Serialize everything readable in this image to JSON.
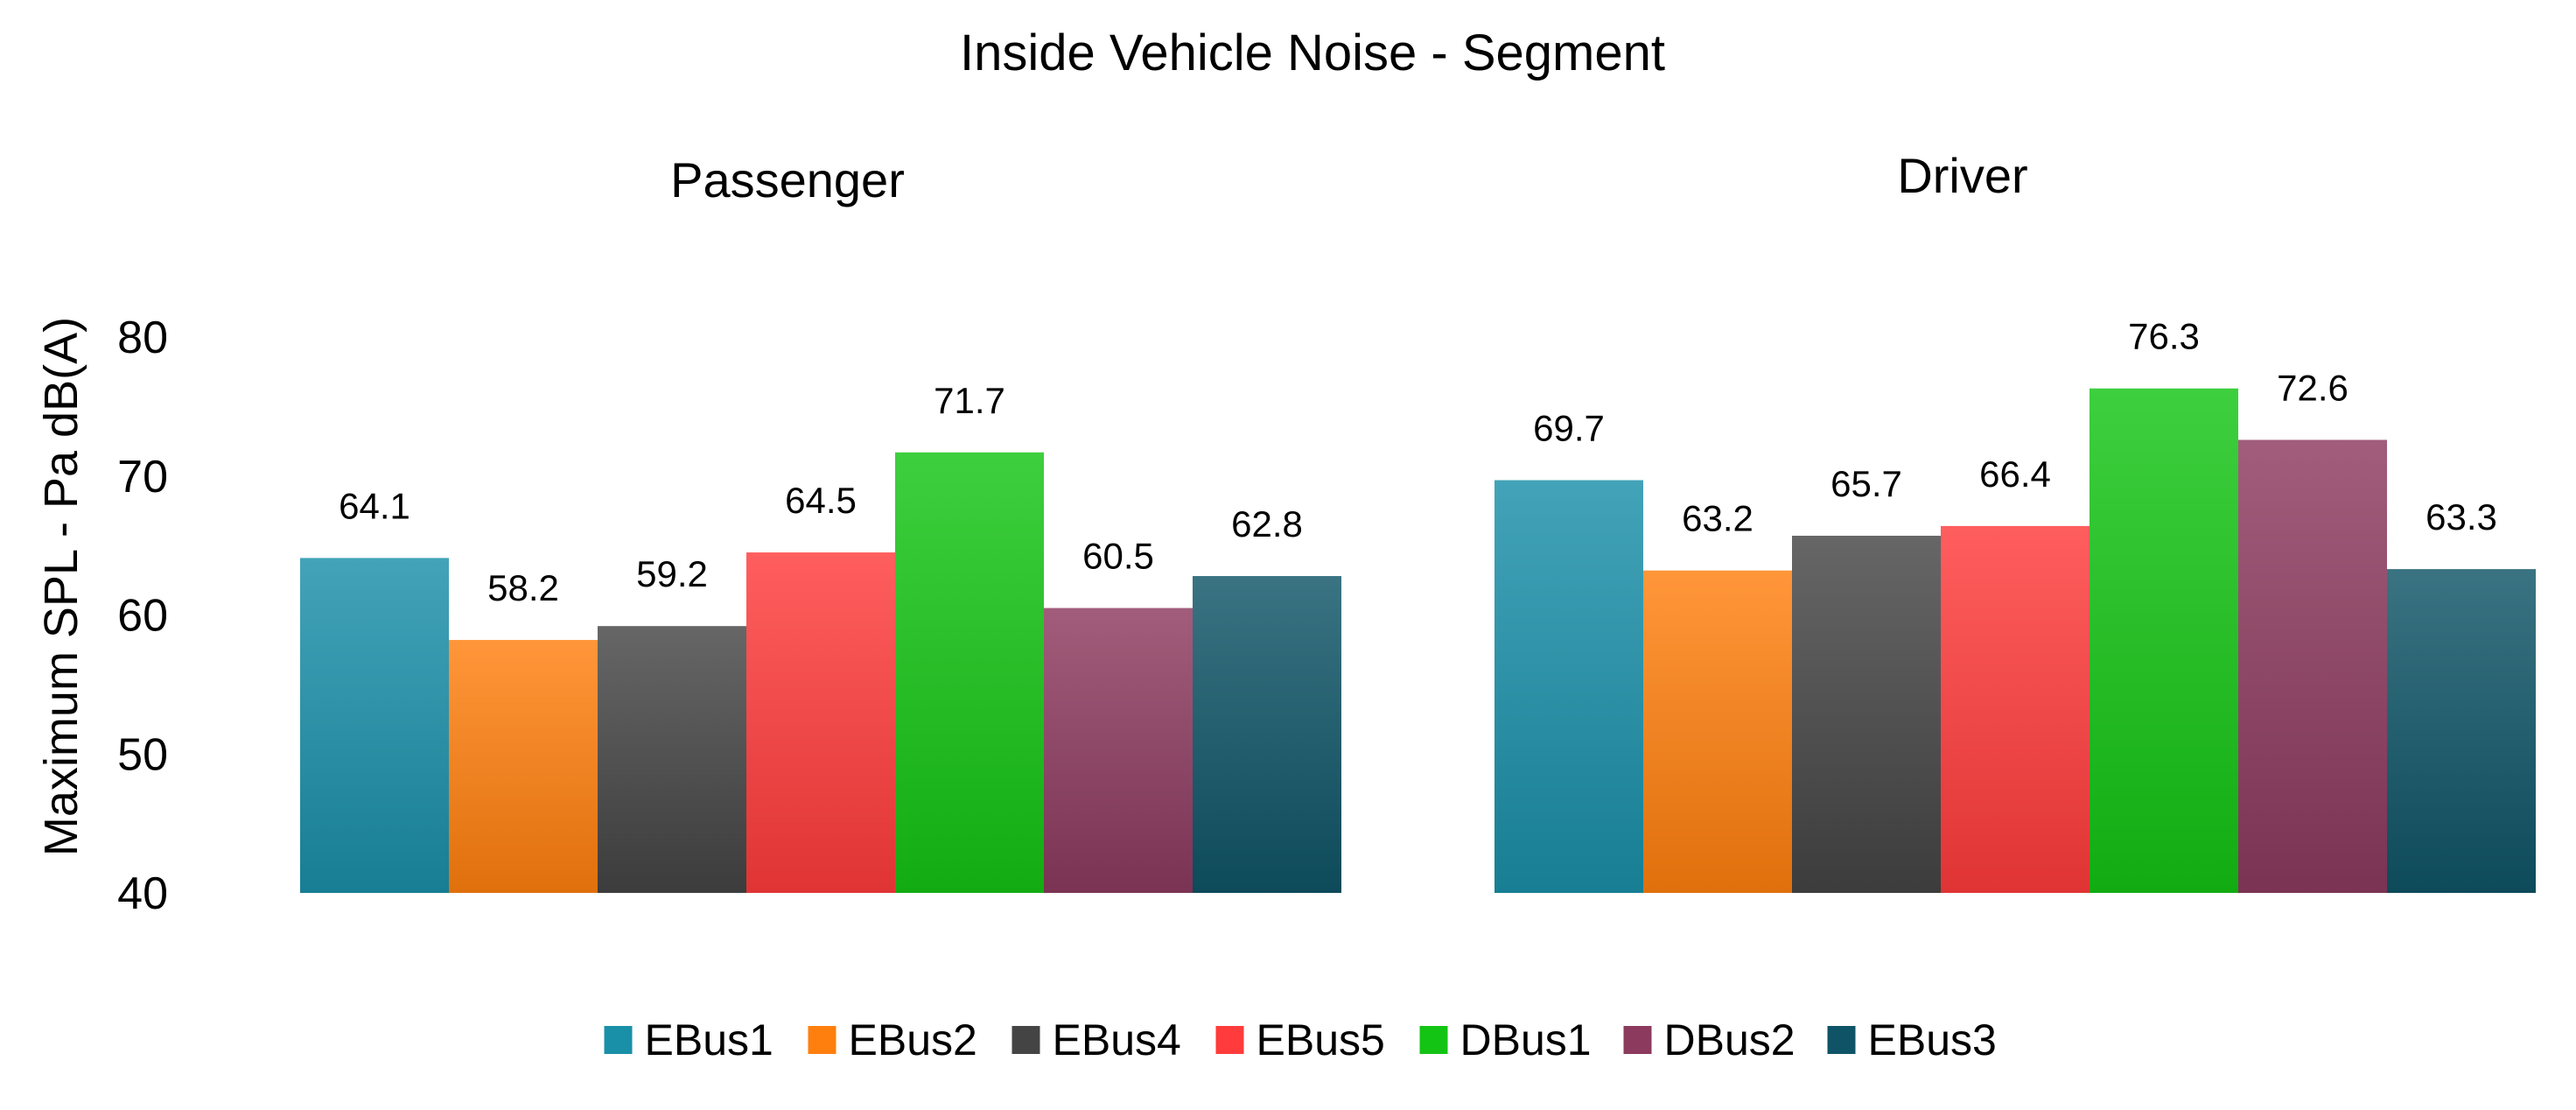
{
  "chart_data": {
    "type": "bar",
    "title": "Inside Vehicle Noise - Segment",
    "ylabel": "Maximum SPL - Pa dB(A)",
    "xlabel": "",
    "ylim": [
      40,
      80
    ],
    "yticks": [
      40,
      50,
      60,
      70,
      80
    ],
    "grid": false,
    "legend_position": "bottom",
    "categories": [
      "Passenger",
      "Driver"
    ],
    "series": [
      {
        "name": "EBus1",
        "color": "#1a8fa8",
        "values": [
          64.1,
          69.7
        ]
      },
      {
        "name": "EBus2",
        "color": "#ff7f0e",
        "values": [
          58.2,
          63.2
        ]
      },
      {
        "name": "EBus4",
        "color": "#444444",
        "values": [
          59.2,
          65.7
        ]
      },
      {
        "name": "EBus5",
        "color": "#ff3b3b",
        "values": [
          64.5,
          66.4
        ]
      },
      {
        "name": "DBus1",
        "color": "#14c414",
        "values": [
          71.7,
          76.3
        ]
      },
      {
        "name": "DBus2",
        "color": "#8c3a5e",
        "values": [
          60.5,
          72.6
        ]
      },
      {
        "name": "EBus3",
        "color": "#0f5466",
        "values": [
          62.8,
          63.3
        ]
      }
    ]
  }
}
